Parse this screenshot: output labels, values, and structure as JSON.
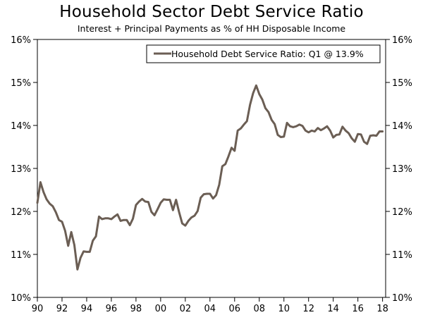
{
  "chart_data": {
    "type": "line",
    "title": "Household Sector Debt Service Ratio",
    "subtitle": "Interest + Principal Payments as % of HH Disposable Income",
    "xlabel": "",
    "ylabel": "",
    "xlim": [
      1990.0,
      2018.25
    ],
    "ylim": [
      10,
      16
    ],
    "x_ticks": [
      1990,
      1992,
      1994,
      1996,
      1998,
      2000,
      2002,
      2004,
      2006,
      2008,
      2010,
      2012,
      2014,
      2016,
      2018
    ],
    "x_tick_labels": [
      "90",
      "92",
      "94",
      "96",
      "98",
      "00",
      "02",
      "04",
      "06",
      "08",
      "10",
      "12",
      "14",
      "16",
      "18"
    ],
    "y_ticks": [
      10,
      11,
      12,
      13,
      14,
      15,
      16
    ],
    "y_tick_labels": [
      "10%",
      "11%",
      "12%",
      "13%",
      "14%",
      "15%",
      "16%"
    ],
    "grid": false,
    "legend_position": "top-right",
    "line_color": "#6b5e54",
    "series": [
      {
        "name": "Household Debt Service Ratio: Q1 @ 13.9%",
        "x": [
          1990.0,
          1990.25,
          1990.5,
          1990.75,
          1991.0,
          1991.25,
          1991.5,
          1991.75,
          1992.0,
          1992.25,
          1992.5,
          1992.75,
          1993.0,
          1993.25,
          1993.5,
          1993.75,
          1994.0,
          1994.25,
          1994.5,
          1994.75,
          1995.0,
          1995.25,
          1995.5,
          1995.75,
          1996.0,
          1996.25,
          1996.5,
          1996.75,
          1997.0,
          1997.25,
          1997.5,
          1997.75,
          1998.0,
          1998.25,
          1998.5,
          1998.75,
          1999.0,
          1999.25,
          1999.5,
          1999.75,
          2000.0,
          2000.25,
          2000.5,
          2000.75,
          2001.0,
          2001.25,
          2001.5,
          2001.75,
          2002.0,
          2002.25,
          2002.5,
          2002.75,
          2003.0,
          2003.25,
          2003.5,
          2003.75,
          2004.0,
          2004.25,
          2004.5,
          2004.75,
          2005.0,
          2005.25,
          2005.5,
          2005.75,
          2006.0,
          2006.25,
          2006.5,
          2006.75,
          2007.0,
          2007.25,
          2007.5,
          2007.75,
          2008.0,
          2008.25,
          2008.5,
          2008.75,
          2009.0,
          2009.25,
          2009.5,
          2009.75,
          2010.0,
          2010.25,
          2010.5,
          2010.75,
          2011.0,
          2011.25,
          2011.5,
          2011.75,
          2012.0,
          2012.25,
          2012.5,
          2012.75,
          2013.0,
          2013.25,
          2013.5,
          2013.75,
          2014.0,
          2014.25,
          2014.5,
          2014.75,
          2015.0,
          2015.25,
          2015.5,
          2015.75,
          2016.0,
          2016.25,
          2016.5,
          2016.75,
          2017.0,
          2017.25,
          2017.5,
          2017.75,
          2018.0
        ],
        "y": [
          12.2,
          12.68,
          12.45,
          12.28,
          12.18,
          12.12,
          11.98,
          11.8,
          11.76,
          11.55,
          11.2,
          11.52,
          11.22,
          10.65,
          10.92,
          11.07,
          11.06,
          11.06,
          11.32,
          11.42,
          11.88,
          11.82,
          11.84,
          11.84,
          11.82,
          11.88,
          11.93,
          11.78,
          11.8,
          11.8,
          11.68,
          11.83,
          12.15,
          12.23,
          12.29,
          12.23,
          12.22,
          11.99,
          11.91,
          12.05,
          12.2,
          12.28,
          12.27,
          12.27,
          12.03,
          12.27,
          11.98,
          11.72,
          11.67,
          11.78,
          11.86,
          11.9,
          12.01,
          12.32,
          12.4,
          12.41,
          12.41,
          12.3,
          12.38,
          12.62,
          13.05,
          13.1,
          13.28,
          13.48,
          13.41,
          13.88,
          13.93,
          14.02,
          14.1,
          14.48,
          14.75,
          14.93,
          14.73,
          14.6,
          14.4,
          14.31,
          14.13,
          14.03,
          13.78,
          13.73,
          13.74,
          14.06,
          13.98,
          13.96,
          13.98,
          14.02,
          13.99,
          13.88,
          13.84,
          13.88,
          13.86,
          13.94,
          13.89,
          13.93,
          13.98,
          13.88,
          13.72,
          13.78,
          13.79,
          13.97,
          13.88,
          13.82,
          13.7,
          13.62,
          13.8,
          13.79,
          13.62,
          13.57,
          13.76,
          13.77,
          13.76,
          13.86,
          13.86
        ]
      }
    ]
  }
}
